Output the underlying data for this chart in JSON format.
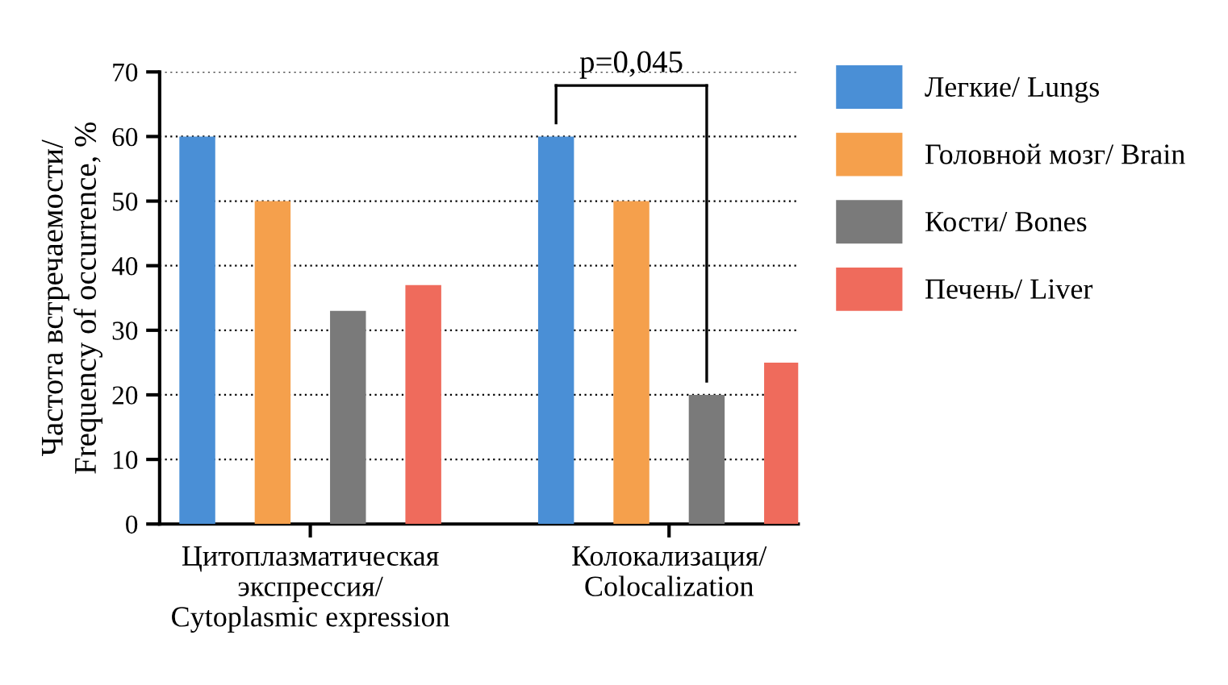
{
  "chart_data": {
    "type": "bar",
    "ylabel": "Частота встречаемости/\nFrequency of occurrence, %",
    "categories": [
      "Цитоплазматическая\nэкспрессия/\nCytoplasmic expression",
      "Колокализация/\nColocalization"
    ],
    "series": [
      {
        "name": "Легкие/ Lungs",
        "color": "#4a8fd6",
        "values": [
          60,
          60
        ]
      },
      {
        "name": "Головной мозг/ Brain",
        "color": "#f5a04c",
        "values": [
          50,
          50
        ]
      },
      {
        "name": "Кости/ Bones",
        "color": "#7a7a7a",
        "values": [
          33,
          20
        ]
      },
      {
        "name": "Печень/ Liver",
        "color": "#ef6b5c",
        "values": [
          37,
          25
        ]
      }
    ],
    "ylim": [
      0,
      70
    ],
    "yticks": [
      0,
      10,
      20,
      30,
      40,
      50,
      60,
      70
    ],
    "grid": "y",
    "legend": "top right",
    "annotations": [
      "p=0,045"
    ]
  }
}
